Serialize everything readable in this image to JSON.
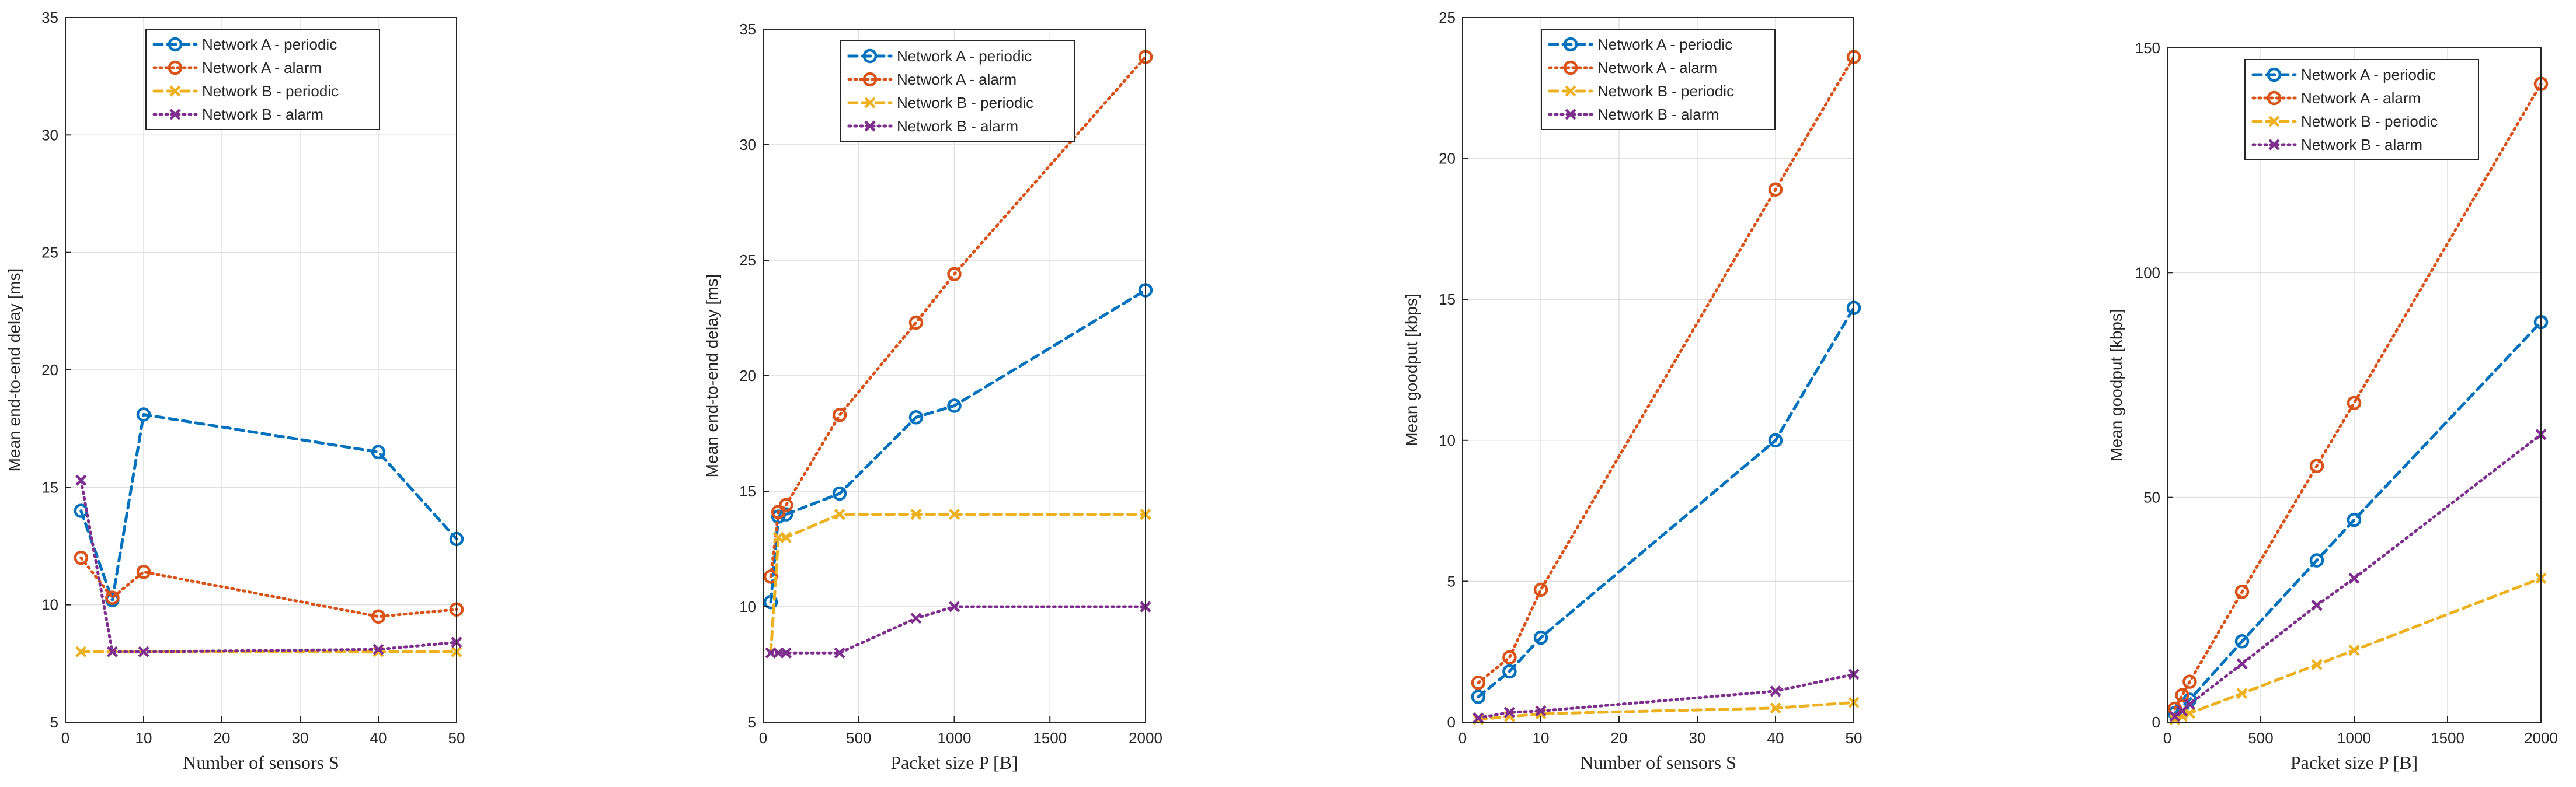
{
  "chart_data": [
    {
      "type": "line",
      "title": "",
      "xlabel": "Number of sensors S",
      "ylabel": "Mean end-to-end delay [ms]",
      "xlim": [
        0,
        50
      ],
      "ylim": [
        5,
        35
      ],
      "xticks": [
        0,
        10,
        20,
        30,
        40,
        50
      ],
      "yticks": [
        5,
        10,
        15,
        20,
        25,
        30,
        35
      ],
      "grid": true,
      "legend_position": "top-center",
      "series": [
        {
          "name": "Network A - periodic",
          "x": [
            2,
            6,
            10,
            40,
            50
          ],
          "y": [
            14.0,
            10.2,
            18.1,
            16.5,
            12.8
          ]
        },
        {
          "name": "Network A - alarm",
          "x": [
            2,
            6,
            10,
            40,
            50
          ],
          "y": [
            12.0,
            10.3,
            11.4,
            9.5,
            9.8
          ]
        },
        {
          "name": "Network B - periodic",
          "x": [
            2,
            6,
            10,
            40,
            50
          ],
          "y": [
            8.0,
            8.0,
            8.0,
            8.0,
            8.0
          ]
        },
        {
          "name": "Network B - alarm",
          "x": [
            2,
            6,
            10,
            40,
            50
          ],
          "y": [
            15.3,
            8.0,
            8.0,
            8.1,
            8.4
          ]
        }
      ]
    },
    {
      "type": "line",
      "title": "",
      "xlabel": "Packet size P [B]",
      "ylabel": "Mean end-to-end delay [ms]",
      "xlim": [
        0,
        2000
      ],
      "ylim": [
        5,
        35
      ],
      "xticks": [
        0,
        500,
        1000,
        1500,
        2000
      ],
      "yticks": [
        5,
        10,
        15,
        20,
        25,
        30,
        35
      ],
      "grid": true,
      "legend_position": "top-center",
      "series": [
        {
          "name": "Network A - periodic",
          "x": [
            40,
            80,
            120,
            400,
            800,
            1000,
            2000
          ],
          "y": [
            10.2,
            13.9,
            14.0,
            14.9,
            18.2,
            18.7,
            23.7
          ]
        },
        {
          "name": "Network A - alarm",
          "x": [
            40,
            80,
            120,
            400,
            800,
            1000,
            2000
          ],
          "y": [
            11.3,
            14.1,
            14.4,
            18.3,
            22.3,
            24.4,
            33.8
          ]
        },
        {
          "name": "Network B - periodic",
          "x": [
            40,
            80,
            120,
            400,
            800,
            1000,
            2000
          ],
          "y": [
            8.0,
            13.0,
            13.0,
            14.0,
            14.0,
            14.0,
            14.0
          ]
        },
        {
          "name": "Network B - alarm",
          "x": [
            40,
            80,
            120,
            400,
            800,
            1000,
            2000
          ],
          "y": [
            8.0,
            8.0,
            8.0,
            8.0,
            9.5,
            10.0,
            10.0
          ]
        }
      ]
    },
    {
      "type": "line",
      "title": "",
      "xlabel": "Number of sensors S",
      "ylabel": "Mean goodput [kbps]",
      "xlim": [
        0,
        50
      ],
      "ylim": [
        0,
        25
      ],
      "xticks": [
        0,
        10,
        20,
        30,
        40,
        50
      ],
      "yticks": [
        0,
        5,
        10,
        15,
        20,
        25
      ],
      "grid": true,
      "legend_position": "top-center",
      "series": [
        {
          "name": "Network A - periodic",
          "x": [
            2,
            6,
            10,
            40,
            50
          ],
          "y": [
            0.9,
            1.8,
            3.0,
            10.0,
            14.7
          ]
        },
        {
          "name": "Network A - alarm",
          "x": [
            2,
            6,
            10,
            40,
            50
          ],
          "y": [
            1.4,
            2.3,
            4.7,
            18.9,
            23.6
          ]
        },
        {
          "name": "Network B - periodic",
          "x": [
            2,
            6,
            10,
            40,
            50
          ],
          "y": [
            0.1,
            0.2,
            0.3,
            0.5,
            0.7
          ]
        },
        {
          "name": "Network B - alarm",
          "x": [
            2,
            6,
            10,
            40,
            50
          ],
          "y": [
            0.15,
            0.35,
            0.4,
            1.1,
            1.7
          ]
        }
      ]
    },
    {
      "type": "line",
      "title": "",
      "xlabel": "Packet size P [B]",
      "ylabel": "Mean goodput [kbps]",
      "xlim": [
        0,
        2000
      ],
      "ylim": [
        0,
        150
      ],
      "xticks": [
        0,
        500,
        1000,
        1500,
        2000
      ],
      "yticks": [
        0,
        50,
        100,
        150
      ],
      "grid": true,
      "legend_position": "top-center",
      "series": [
        {
          "name": "Network A - periodic",
          "x": [
            40,
            80,
            120,
            400,
            800,
            1000,
            2000
          ],
          "y": [
            2,
            3.5,
            5,
            18,
            36,
            45,
            89
          ]
        },
        {
          "name": "Network A - alarm",
          "x": [
            40,
            80,
            120,
            400,
            800,
            1000,
            2000
          ],
          "y": [
            3,
            6,
            9,
            29,
            57,
            71,
            142
          ]
        },
        {
          "name": "Network B - periodic",
          "x": [
            40,
            80,
            120,
            400,
            800,
            1000,
            2000
          ],
          "y": [
            0.6,
            1.3,
            2,
            6.4,
            12.8,
            16,
            32
          ]
        },
        {
          "name": "Network B - alarm",
          "x": [
            40,
            80,
            120,
            400,
            800,
            1000,
            2000
          ],
          "y": [
            1.3,
            2.5,
            4,
            13,
            26,
            32,
            64
          ]
        }
      ]
    }
  ],
  "styles": {
    "series_colors": [
      "#0072BD",
      "#D95319",
      "#EDB120",
      "#7E2F8E"
    ],
    "series_markers": [
      "circle",
      "circle",
      "cross",
      "cross"
    ],
    "series_dashes": [
      "dashed",
      "dotted",
      "dashed",
      "dotted"
    ],
    "axis_color": "#262626",
    "grid_color": "#dfdfdf"
  }
}
